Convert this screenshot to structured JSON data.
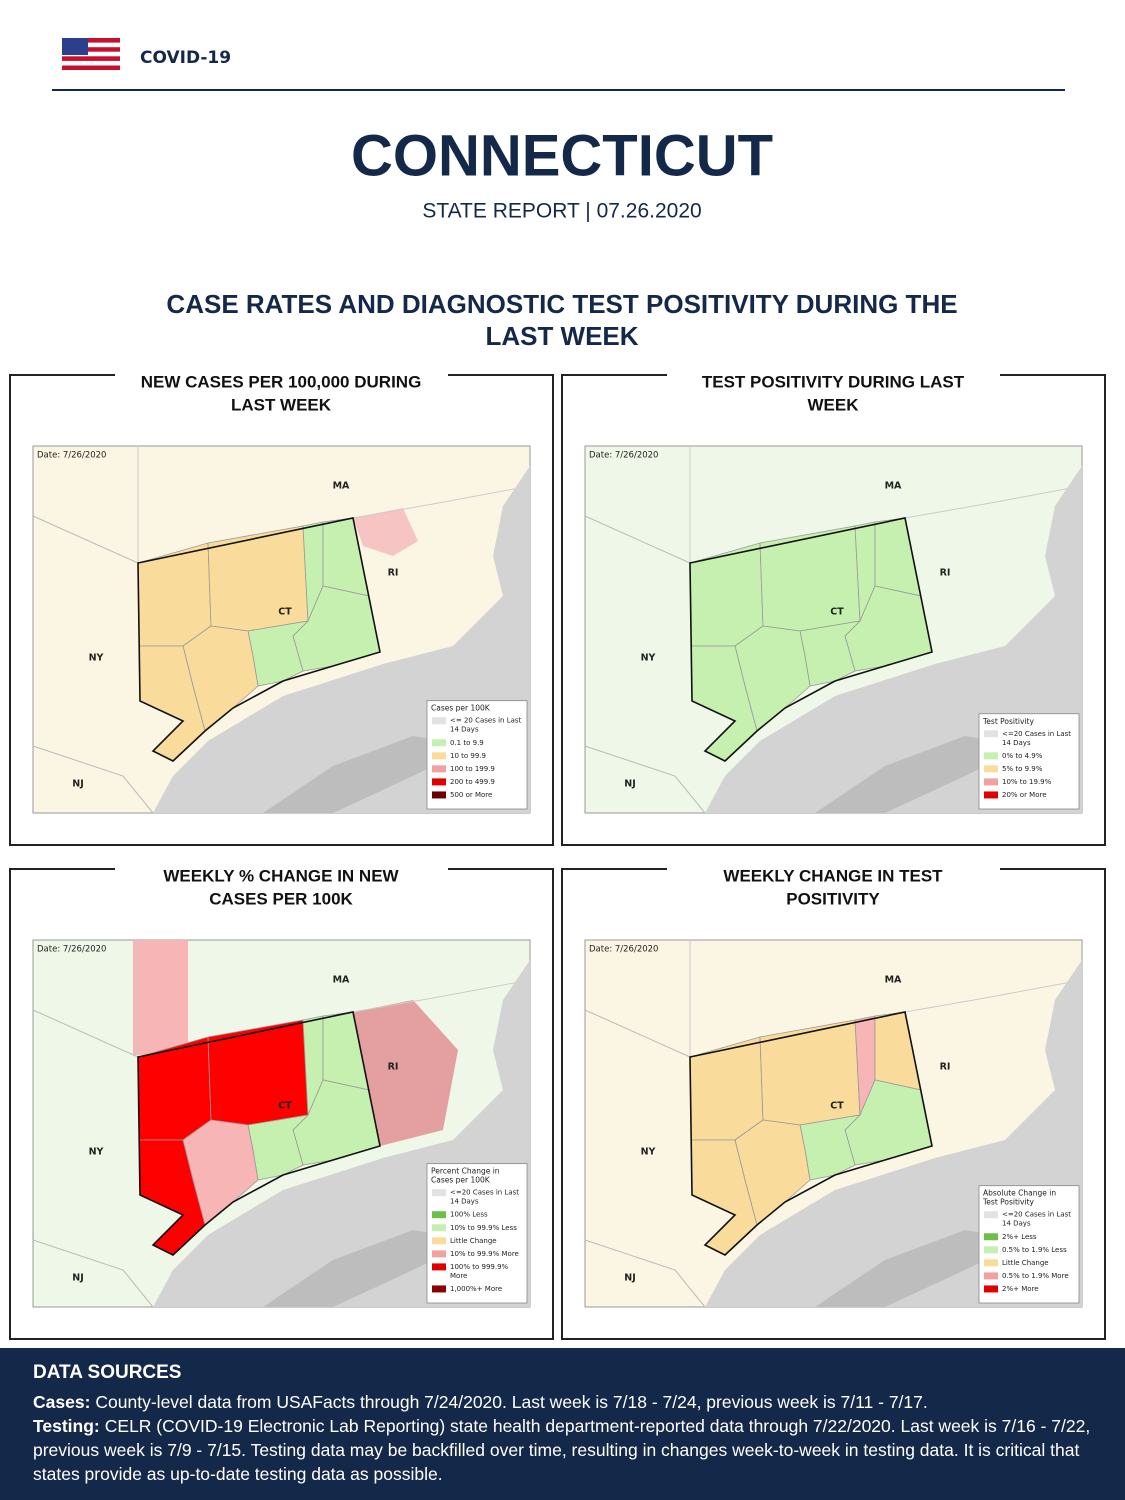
{
  "header": {
    "label": "COVID-19"
  },
  "title": "CONNECTICUT",
  "subtitle": "STATE REPORT | 07.26.2020",
  "section_title": [
    "CASE RATES AND DIAGNOSTIC TEST POSITIVITY DURING THE",
    "LAST WEEK"
  ],
  "maps": [
    {
      "title": [
        "NEW CASES PER 100,000 DURING",
        "LAST WEEK"
      ],
      "date": "Date: 7/26/2020",
      "labels": [
        "MA",
        "RI",
        "CT",
        "NY",
        "NJ"
      ],
      "legend": {
        "title": [
          "Cases per 100K"
        ],
        "items": [
          {
            "label": [
              "<= 20 Cases in Last",
              "14 Days"
            ],
            "color": "#e2e2e2"
          },
          {
            "label": [
              "0.1 to 9.9"
            ],
            "color": "#c6f0b0"
          },
          {
            "label": [
              "10 to 99.9"
            ],
            "color": "#f9dc9c"
          },
          {
            "label": [
              "100 to 199.9"
            ],
            "color": "#f2a0a0"
          },
          {
            "label": [
              "200 to 499.9"
            ],
            "color": "#e00000"
          },
          {
            "label": [
              "500 or More"
            ],
            "color": "#6b0000"
          }
        ]
      }
    },
    {
      "title": [
        "TEST POSITIVITY DURING LAST",
        "WEEK"
      ],
      "date": "Date: 7/26/2020",
      "labels": [
        "MA",
        "RI",
        "CT",
        "NY",
        "NJ"
      ],
      "legend": {
        "title": [
          "Test Positivity"
        ],
        "items": [
          {
            "label": [
              "<=20 Cases in Last",
              "14 Days"
            ],
            "color": "#e2e2e2"
          },
          {
            "label": [
              "0% to 4.9%"
            ],
            "color": "#c6f0b0"
          },
          {
            "label": [
              "5% to 9.9%"
            ],
            "color": "#f9dc9c"
          },
          {
            "label": [
              "10% to 19.9%"
            ],
            "color": "#f2a0a0"
          },
          {
            "label": [
              "20% or More"
            ],
            "color": "#e00000"
          }
        ]
      }
    },
    {
      "title": [
        "WEEKLY % CHANGE IN NEW",
        "CASES PER 100K"
      ],
      "date": "Date: 7/26/2020",
      "labels": [
        "MA",
        "RI",
        "CT",
        "NY",
        "NJ"
      ],
      "legend": {
        "title": [
          "Percent Change in",
          "Cases per 100K"
        ],
        "items": [
          {
            "label": [
              "<=20 Cases in Last",
              "14 Days"
            ],
            "color": "#e2e2e2"
          },
          {
            "label": [
              "100% Less"
            ],
            "color": "#6cc04a"
          },
          {
            "label": [
              "10% to 99.9% Less"
            ],
            "color": "#c6f0b0"
          },
          {
            "label": [
              "Little Change"
            ],
            "color": "#f9dc9c"
          },
          {
            "label": [
              "10% to 99.9% More"
            ],
            "color": "#f2a0a0"
          },
          {
            "label": [
              "100% to 999.9%",
              "More"
            ],
            "color": "#e00000"
          },
          {
            "label": [
              "1,000%+ More"
            ],
            "color": "#8b0000"
          }
        ]
      }
    },
    {
      "title": [
        "WEEKLY CHANGE IN TEST",
        "POSITIVITY"
      ],
      "date": "Date: 7/26/2020",
      "labels": [
        "MA",
        "RI",
        "CT",
        "NY",
        "NJ"
      ],
      "legend": {
        "title": [
          "Absolute Change in",
          "Test Positivity"
        ],
        "items": [
          {
            "label": [
              "<=20 Cases in Last",
              "14 Days"
            ],
            "color": "#e2e2e2"
          },
          {
            "label": [
              "2%+ Less"
            ],
            "color": "#6cc04a"
          },
          {
            "label": [
              "0.5% to 1.9% Less"
            ],
            "color": "#c6f0b0"
          },
          {
            "label": [
              "Little Change"
            ],
            "color": "#f9dc9c"
          },
          {
            "label": [
              "0.5% to 1.9% More"
            ],
            "color": "#f2a0a0"
          },
          {
            "label": [
              "2%+ More"
            ],
            "color": "#e00000"
          }
        ]
      }
    }
  ],
  "data_sources": {
    "heading": "DATA SOURCES",
    "items": [
      {
        "label": "Cases:",
        "text": "County-level data from USAFacts through 7/24/2020. Last week is 7/18 - 7/24, previous week is 7/11 - 7/17."
      },
      {
        "label": "Testing:",
        "text": "CELR (COVID-19 Electronic Lab Reporting) state health department-reported data through 7/22/2020. Last week is 7/16 - 7/22, previous week is 7/9 - 7/15. Testing data may be backfilled over time, resulting in changes week-to-week in testing data. It is critical that states provide as up-to-date testing data as possible."
      }
    ]
  }
}
